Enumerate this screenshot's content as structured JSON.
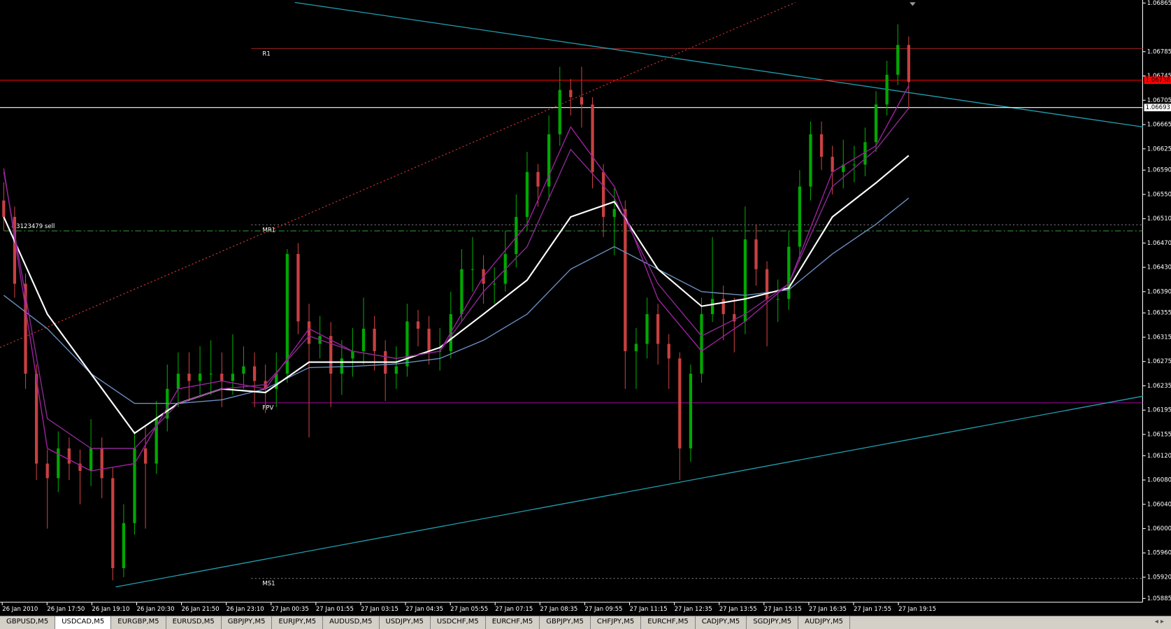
{
  "chart_data": {
    "type": "candlestick",
    "ylim": [
      1.0588,
      1.0687
    ],
    "yticks": [
      1.06865,
      1.06785,
      1.06745,
      1.06705,
      1.06665,
      1.06625,
      {
        "value": 1.0659,
        "label": "1.06590"
      },
      {
        "value": 1.0655,
        "label": "1.06550"
      },
      {
        "value": 1.0651,
        "label": "1.06510"
      },
      {
        "value": 1.0647,
        "label": "1.06470"
      },
      {
        "value": 1.0643,
        "label": "1.06430"
      },
      {
        "value": 1.0639,
        "label": "1.06390"
      },
      1.06355,
      1.06315,
      1.06275,
      1.06235,
      1.06195,
      1.06155,
      {
        "value": 1.0612,
        "label": "1.06120"
      },
      {
        "value": 1.0608,
        "label": "1.06080"
      },
      {
        "value": 1.0604,
        "label": "1.06040"
      },
      {
        "value": 1.06,
        "label": "1.06000"
      },
      {
        "value": 1.0596,
        "label": "1.05960"
      },
      {
        "value": 1.0592,
        "label": "1.05920"
      },
      1.05885
    ],
    "xlabels": [
      "26 Jan 2010",
      "26 Jan 17:50",
      "26 Jan 19:10",
      "26 Jan 20:30",
      "26 Jan 21:50",
      "26 Jan 23:10",
      "27 Jan 00:35",
      "27 Jan 01:55",
      "27 Jan 03:15",
      "27 Jan 04:35",
      "27 Jan 05:55",
      "27 Jan 07:15",
      "27 Jan 08:35",
      "27 Jan 09:55",
      "27 Jan 11:15",
      "27 Jan 12:35",
      "27 Jan 13:55",
      "27 Jan 15:15",
      "27 Jan 16:35",
      "27 Jan 17:55",
      "27 Jan 19:15"
    ],
    "bull_color": "#00a800",
    "bear_color": "#c84040",
    "ohlc": [
      [
        1.0654,
        1.0657,
        1.0649,
        1.06513
      ],
      [
        1.06513,
        1.0653,
        1.0638,
        1.06403
      ],
      [
        1.06403,
        1.0642,
        1.0623,
        1.06255
      ],
      [
        1.06255,
        1.0627,
        1.0608,
        1.06107
      ],
      [
        1.06107,
        1.0613,
        1.06,
        1.06083
      ],
      [
        1.06083,
        1.0616,
        1.0606,
        1.06132
      ],
      [
        1.06132,
        1.0615,
        1.0608,
        1.06107
      ],
      [
        1.06107,
        1.0613,
        1.0604,
        1.06095
      ],
      [
        1.06095,
        1.0618,
        1.0607,
        1.06132
      ],
      [
        1.06132,
        1.0615,
        1.0605,
        1.06083
      ],
      [
        1.06083,
        1.061,
        1.05915,
        1.05935
      ],
      [
        1.05935,
        1.0604,
        1.0592,
        1.06009
      ],
      [
        1.06009,
        1.0616,
        1.0599,
        1.06132
      ],
      [
        1.06132,
        1.0617,
        1.06,
        1.06107
      ],
      [
        1.06107,
        1.0621,
        1.0609,
        1.06181
      ],
      [
        1.06181,
        1.0627,
        1.0616,
        1.0623
      ],
      [
        1.0623,
        1.0629,
        1.062,
        1.06255
      ],
      [
        1.06255,
        1.0629,
        1.0621,
        1.06243
      ],
      [
        1.06243,
        1.063,
        1.0622,
        1.06255
      ],
      [
        1.06255,
        1.0631,
        1.0622,
        1.06255
      ],
      [
        1.06255,
        1.0629,
        1.062,
        1.06243
      ],
      [
        1.06243,
        1.0632,
        1.0622,
        1.06255
      ],
      [
        1.06255,
        1.063,
        1.0623,
        1.06267
      ],
      [
        1.06267,
        1.0629,
        1.062,
        1.06243
      ],
      [
        1.06243,
        1.0627,
        1.0619,
        1.0623
      ],
      [
        1.0623,
        1.0629,
        1.062,
        1.06255
      ],
      [
        1.06255,
        1.0646,
        1.0624,
        1.06452
      ],
      [
        1.06452,
        1.0647,
        1.0632,
        1.06341
      ],
      [
        1.06341,
        1.0637,
        1.0615,
        1.06304
      ],
      [
        1.06304,
        1.0635,
        1.0628,
        1.06317
      ],
      [
        1.06317,
        1.0634,
        1.062,
        1.06255
      ],
      [
        1.06255,
        1.0631,
        1.0622,
        1.0628
      ],
      [
        1.0628,
        1.0633,
        1.0625,
        1.06292
      ],
      [
        1.06292,
        1.0638,
        1.0627,
        1.06329
      ],
      [
        1.06329,
        1.0635,
        1.0626,
        1.06292
      ],
      [
        1.06292,
        1.0631,
        1.0621,
        1.06255
      ],
      [
        1.06255,
        1.063,
        1.0623,
        1.06267
      ],
      [
        1.06267,
        1.0637,
        1.0625,
        1.06341
      ],
      [
        1.06341,
        1.0636,
        1.063,
        1.06329
      ],
      [
        1.06329,
        1.0635,
        1.0627,
        1.06292
      ],
      [
        1.06292,
        1.0633,
        1.0626,
        1.06292
      ],
      [
        1.06292,
        1.0639,
        1.0628,
        1.06353
      ],
      [
        1.06353,
        1.0646,
        1.0634,
        1.06427
      ],
      [
        1.06427,
        1.0648,
        1.0639,
        1.06427
      ],
      [
        1.06427,
        1.0645,
        1.0637,
        1.06403
      ],
      [
        1.06403,
        1.0643,
        1.0637,
        1.06403
      ],
      [
        1.06403,
        1.0649,
        1.0639,
        1.06452
      ],
      [
        1.06452,
        1.0655,
        1.0643,
        1.06513
      ],
      [
        1.06513,
        1.0662,
        1.0649,
        1.06587
      ],
      [
        1.06587,
        1.066,
        1.0653,
        1.06563
      ],
      [
        1.06563,
        1.0668,
        1.0654,
        1.06649
      ],
      [
        1.06649,
        1.0676,
        1.0663,
        1.06722
      ],
      [
        1.06722,
        1.0674,
        1.0668,
        1.0671
      ],
      [
        1.0671,
        1.0676,
        1.0666,
        1.06698
      ],
      [
        1.06698,
        1.0671,
        1.0656,
        1.06587
      ],
      [
        1.06587,
        1.066,
        1.0648,
        1.06513
      ],
      [
        1.06513,
        1.0656,
        1.0645,
        1.06526
      ],
      [
        1.06526,
        1.0654,
        1.0623,
        1.06292
      ],
      [
        1.06292,
        1.0633,
        1.0623,
        1.06304
      ],
      [
        1.06304,
        1.0638,
        1.0628,
        1.06353
      ],
      [
        1.06353,
        1.0637,
        1.0627,
        1.06304
      ],
      [
        1.06304,
        1.0632,
        1.0623,
        1.0628
      ],
      [
        1.0628,
        1.0629,
        1.0608,
        1.06132
      ],
      [
        1.06132,
        1.0627,
        1.0611,
        1.06255
      ],
      [
        1.06255,
        1.0638,
        1.0624,
        1.06353
      ],
      [
        1.06353,
        1.0648,
        1.0634,
        1.06378
      ],
      [
        1.06378,
        1.064,
        1.0631,
        1.06353
      ],
      [
        1.06353,
        1.0638,
        1.0629,
        1.06341
      ],
      [
        1.06341,
        1.0653,
        1.0632,
        1.06476
      ],
      [
        1.06476,
        1.065,
        1.064,
        1.06427
      ],
      [
        1.06427,
        1.0644,
        1.063,
        1.06378
      ],
      [
        1.06378,
        1.0641,
        1.0634,
        1.06378
      ],
      [
        1.06378,
        1.0649,
        1.0636,
        1.06464
      ],
      [
        1.06464,
        1.0659,
        1.0644,
        1.06563
      ],
      [
        1.06563,
        1.0667,
        1.0654,
        1.06649
      ],
      [
        1.06649,
        1.0667,
        1.0659,
        1.06612
      ],
      [
        1.06612,
        1.0663,
        1.0655,
        1.06587
      ],
      [
        1.06587,
        1.0664,
        1.0656,
        1.06599
      ],
      [
        1.06599,
        1.0663,
        1.0657,
        1.06599
      ],
      [
        1.06599,
        1.0666,
        1.0658,
        1.06636
      ],
      [
        1.06636,
        1.0672,
        1.0662,
        1.06698
      ],
      [
        1.06698,
        1.0677,
        1.0668,
        1.06747
      ],
      [
        1.06747,
        1.0683,
        1.0673,
        1.06796
      ],
      [
        1.06796,
        1.0681,
        1.0669,
        1.06735
      ]
    ],
    "ma_index": [
      0,
      4,
      8,
      12,
      16,
      20,
      24,
      28,
      32,
      36,
      40,
      44,
      48,
      52,
      56,
      60,
      64,
      68,
      72,
      76,
      80,
      83
    ],
    "series": [
      {
        "color": "#6a8fc0",
        "values": [
          1.06384,
          1.06329,
          1.06255,
          1.06206,
          1.06206,
          1.06212,
          1.0623,
          1.06265,
          1.06267,
          1.06271,
          1.0628,
          1.0631,
          1.06353,
          1.06427,
          1.06464,
          1.06427,
          1.0639,
          1.06384,
          1.06393,
          1.06452,
          1.06501,
          1.06544
        ]
      },
      {
        "color": "#ffffff",
        "values": [
          1.06513,
          1.06353,
          1.06255,
          1.06157,
          1.06206,
          1.0623,
          1.06224,
          1.06274,
          1.06274,
          1.06274,
          1.06298,
          1.06353,
          1.06409,
          1.06513,
          1.06538,
          1.06427,
          1.06366,
          1.06378,
          1.06396,
          1.06513,
          1.06569,
          1.06614
        ]
      },
      {
        "color": "#a020a0",
        "values": [
          1.06593,
          1.06132,
          1.06095,
          1.06107,
          1.0623,
          1.06243,
          1.0623,
          1.06329,
          1.06292,
          1.0628,
          1.06292,
          1.06415,
          1.06501,
          1.06661,
          1.06563,
          1.06378,
          1.06292,
          1.06341,
          1.06403,
          1.06587,
          1.0663,
          1.06729
        ]
      },
      {
        "color": "#8a2a90",
        "values": [
          1.06587,
          1.06181,
          1.06132,
          1.06132,
          1.06206,
          1.0623,
          1.06237,
          1.06317,
          1.06292,
          1.0628,
          1.06292,
          1.0639,
          1.06464,
          1.06624,
          1.06544,
          1.06403,
          1.06317,
          1.06353,
          1.06403,
          1.06563,
          1.06624,
          1.06692
        ]
      }
    ],
    "levels": [
      {
        "name": "R1",
        "value": 1.0679,
        "color": "#8b1e1e",
        "style": "solid",
        "start": 22.7
      },
      {
        "name": "MR1",
        "value": 1.065,
        "color": "#777777",
        "style": "dotted",
        "start": 22.7
      },
      {
        "name": "FPV",
        "value": 1.06207,
        "color": "#a000a0",
        "style": "solid",
        "start": 22.7
      },
      {
        "name": "MS1",
        "value": 1.05918,
        "color": "#777777",
        "style": "dotted",
        "start": 22.7
      },
      {
        "name": "#3123479 sell",
        "value": 1.0649,
        "color": "#3a9a3a",
        "style": "dashdot",
        "start": 0
      }
    ],
    "price_marks": [
      {
        "value": 1.06738,
        "color": "#ff0000"
      },
      {
        "value": 1.06693,
        "color": "#ffffff"
      }
    ],
    "trendlines": [
      {
        "from": [
          26.7,
          1.06866
        ],
        "to": [
          104.5,
          1.06661
        ],
        "color": "#20a0b0",
        "style": "solid"
      },
      {
        "from": [
          10.27,
          1.05904
        ],
        "to": [
          104.5,
          1.06218
        ],
        "color": "#20a0b0",
        "style": "solid"
      },
      {
        "from": [
          -0.34,
          1.06298
        ],
        "to": [
          72.6,
          1.06866
        ],
        "color": "#c03030",
        "style": "dotted"
      }
    ]
  },
  "tabs": [
    "GBPUSD,M5",
    "USDCAD,M5",
    "EURGBP,M5",
    "EURUSD,M5",
    "GBPJPY,M5",
    "EURJPY,M5",
    "AUDUSD,M5",
    "USDJPY,M5",
    "USDCHF,M5",
    "EURCHF,M5",
    "GBPJPY,M5",
    "CHFJPY,M5",
    "EURCHF,M5",
    "CADJPY,M5",
    "SGDJPY,M5",
    "AUDJPY,M5"
  ],
  "active_tab": 1
}
